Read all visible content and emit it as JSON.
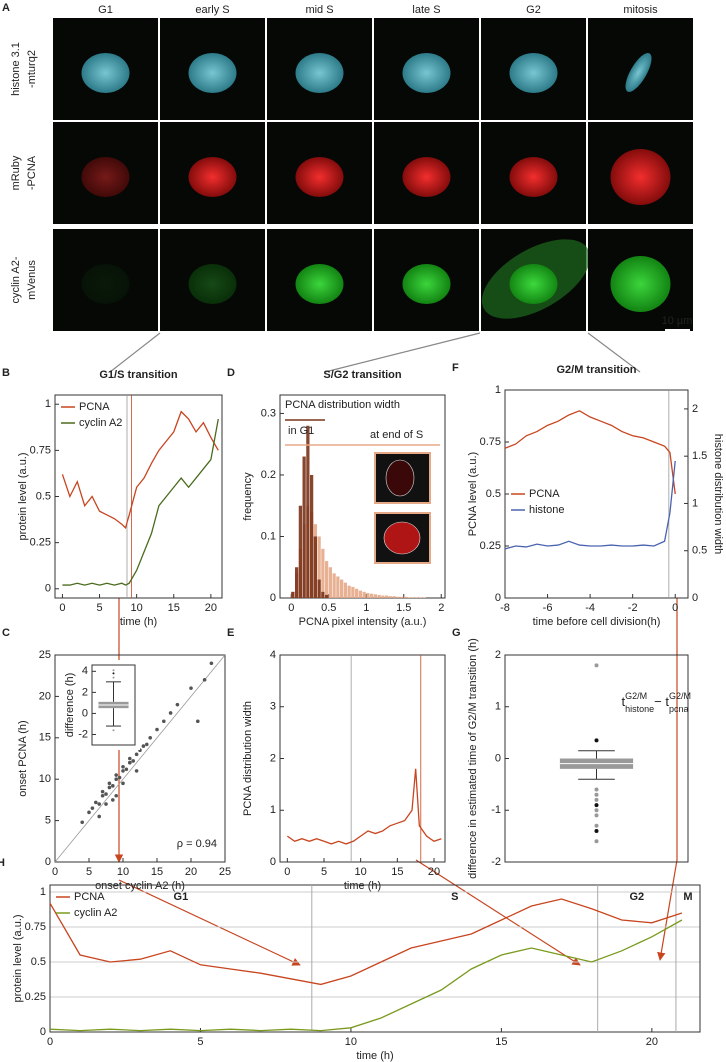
{
  "image_grid": {
    "panel": "A",
    "columns": [
      "G1",
      "early S",
      "mid S",
      "late S",
      "G2",
      "mitosis"
    ],
    "rows": [
      [
        "histone 3.1",
        "-mturq2"
      ],
      [
        "mRuby",
        "-PCNA"
      ],
      [
        "cyclin A2-",
        "mVenus"
      ]
    ],
    "scale_bar": "10 µm"
  },
  "chart_data": [
    {
      "type": "line",
      "panel": "B",
      "title": "G1/S transition",
      "xlabel": "time (h)",
      "ylabel": "protein level (a.u.)",
      "xlim": [
        -1,
        21.5
      ],
      "ylim": [
        -0.05,
        1.05
      ],
      "xticks": [
        0,
        5,
        10,
        15,
        20
      ],
      "yticks": [
        0,
        0.25,
        0.5,
        0.75,
        1
      ],
      "legend": "upper left",
      "markers": [
        8.7,
        9.3
      ],
      "x": [
        0,
        1,
        2,
        3,
        4,
        5,
        6,
        7,
        8,
        8.5,
        9,
        10,
        11,
        12,
        13,
        14,
        15,
        16,
        17,
        18,
        19,
        20,
        21
      ],
      "series": [
        {
          "name": "PCNA",
          "color": "#c8451f",
          "values": [
            0.62,
            0.5,
            0.58,
            0.45,
            0.5,
            0.42,
            0.4,
            0.38,
            0.35,
            0.33,
            0.4,
            0.55,
            0.6,
            0.68,
            0.75,
            0.8,
            0.85,
            0.96,
            0.92,
            0.85,
            0.9,
            0.82,
            0.75
          ]
        },
        {
          "name": "cyclin A2",
          "color": "#4a6b1e",
          "values": [
            0.02,
            0.02,
            0.03,
            0.02,
            0.03,
            0.02,
            0.03,
            0.02,
            0.03,
            0.02,
            0.03,
            0.1,
            0.2,
            0.3,
            0.45,
            0.5,
            0.55,
            0.6,
            0.55,
            0.6,
            0.65,
            0.7,
            0.92
          ]
        }
      ]
    },
    {
      "type": "scatter",
      "panel": "C",
      "xlabel": "onset cyclin A2 (h)",
      "ylabel": "onset PCNA (h)",
      "annotation": "ρ = 0.94",
      "xlim": [
        0,
        25
      ],
      "ylim": [
        0,
        25
      ],
      "xticks": [
        0,
        5,
        10,
        15,
        20,
        25
      ],
      "yticks": [
        0,
        5,
        10,
        15,
        20,
        25
      ],
      "color": "#555",
      "x": [
        4,
        5,
        5.5,
        6,
        6.5,
        7,
        7,
        7.5,
        8,
        8,
        8.5,
        9,
        9,
        9.5,
        10,
        10,
        10.5,
        11,
        11,
        11.5,
        12,
        12.5,
        13,
        13.5,
        14,
        15,
        16,
        17,
        18,
        20,
        21,
        22,
        23,
        6.5,
        8.5,
        10,
        12,
        9,
        7.5,
        11
      ],
      "values": [
        4.8,
        6,
        6.5,
        7.2,
        7,
        8,
        8.5,
        8.2,
        9,
        9.5,
        9.2,
        10,
        10.5,
        10.2,
        11,
        11.5,
        11.2,
        12,
        12.5,
        12.2,
        13,
        13.5,
        14,
        14.2,
        15,
        16,
        17,
        18,
        19,
        21,
        17,
        22,
        24,
        5.5,
        7.5,
        9.5,
        11,
        8,
        7,
        12
      ]
    },
    {
      "type": "box",
      "ylabel": "difference (h)",
      "ylim": [
        -3,
        4.6
      ],
      "yticks": [
        -2,
        0,
        2,
        4
      ],
      "color": "#999",
      "whisker_low": -1.2,
      "q1": 0.5,
      "median": 0.8,
      "q3": 1.1,
      "whisker_high": 3.0,
      "outliers": [
        3.4,
        3.8,
        4.1,
        -1.6
      ]
    },
    {
      "type": "histogram",
      "panel": "D",
      "title": "S/G2 transition",
      "xlabel": "PCNA pixel intensity (a.u.)",
      "ylabel": "frequency",
      "annotations": [
        "PCNA distribution width",
        "in G1",
        "at end of S"
      ],
      "xlim": [
        -0.15,
        2.05
      ],
      "ylim": [
        0,
        0.33
      ],
      "xticks": [
        0,
        0.5,
        1,
        1.5,
        2
      ],
      "yticks": [
        0,
        0.1,
        0.2,
        0.3
      ],
      "bins": [
        0,
        0.05,
        0.1,
        0.15,
        0.2,
        0.25,
        0.3,
        0.35,
        0.4,
        0.45,
        0.5,
        0.55,
        0.6,
        0.65,
        0.7,
        0.75,
        0.8,
        0.85,
        0.9,
        0.95,
        1,
        1.05,
        1.1,
        1.15,
        1.2,
        1.25,
        1.3,
        1.35,
        1.4,
        1.45,
        1.5,
        1.55,
        1.6,
        1.65,
        1.7,
        1.75,
        1.8,
        1.85,
        1.9,
        1.95,
        2
      ],
      "series": [
        {
          "name": "at end of S",
          "color": "#e6a988",
          "values": [
            0.01,
            0.04,
            0.08,
            0.12,
            0.15,
            0.14,
            0.12,
            0.1,
            0.08,
            0.06,
            0.05,
            0.04,
            0.035,
            0.03,
            0.025,
            0.02,
            0.018,
            0.015,
            0.012,
            0.01,
            0.008,
            0.007,
            0.006,
            0.005,
            0.004,
            0.004,
            0.003,
            0.003,
            0.002,
            0.002,
            0.002,
            0.001,
            0.001,
            0.001,
            0.001,
            0.001,
            0,
            0,
            0,
            0
          ]
        },
        {
          "name": "in G1",
          "color": "#7a3318",
          "values": [
            0.01,
            0.05,
            0.15,
            0.23,
            0.28,
            0.2,
            0.1,
            0.03,
            0.01,
            0.005,
            0,
            0,
            0,
            0,
            0,
            0,
            0,
            0,
            0,
            0,
            0,
            0,
            0,
            0,
            0,
            0,
            0,
            0,
            0,
            0,
            0,
            0,
            0,
            0,
            0,
            0,
            0,
            0,
            0,
            0
          ]
        }
      ]
    },
    {
      "type": "line",
      "panel": "E",
      "xlabel": "time (h)",
      "ylabel": "PCNA distribution width",
      "xlim": [
        -1,
        21.5
      ],
      "ylim": [
        0,
        4
      ],
      "xticks": [
        0,
        5,
        10,
        15,
        20
      ],
      "yticks": [
        0,
        1,
        2,
        3,
        4
      ],
      "markers": [
        8.7,
        18.2
      ],
      "x": [
        0,
        1,
        2,
        3,
        4,
        5,
        6,
        7,
        8,
        9,
        10,
        11,
        12,
        13,
        14,
        15,
        16,
        17,
        17.5,
        18,
        19,
        20,
        21
      ],
      "series": [
        {
          "name": "PCNA",
          "color": "#c8451f",
          "values": [
            0.5,
            0.4,
            0.45,
            0.4,
            0.45,
            0.4,
            0.35,
            0.4,
            0.35,
            0.4,
            0.5,
            0.6,
            0.55,
            0.6,
            0.7,
            0.75,
            0.8,
            1.0,
            1.8,
            0.7,
            0.5,
            0.4,
            0.45
          ]
        }
      ]
    },
    {
      "type": "line",
      "panel": "F",
      "title": "G2/M transition",
      "xlabel": "time before cell division(h)",
      "ylabel": "PCNA level (a.u.)",
      "y2label": "histone distribution width",
      "xlim": [
        -8,
        0.6
      ],
      "ylim": [
        0,
        1
      ],
      "y2lim": [
        0,
        2.2
      ],
      "xticks": [
        -8,
        -6,
        -4,
        -2,
        0
      ],
      "yticks": [
        0,
        0.25,
        0.5,
        0.75,
        1
      ],
      "y2ticks": [
        0,
        0.5,
        1,
        1.5,
        2
      ],
      "legend": "center left",
      "markers": [
        -0.3
      ],
      "x": [
        -8,
        -7.5,
        -7,
        -6.5,
        -6,
        -5.5,
        -5,
        -4.5,
        -4,
        -3.5,
        -3,
        -2.5,
        -2,
        -1.5,
        -1,
        -0.5,
        -0.25,
        0
      ],
      "series": [
        {
          "name": "PCNA",
          "color": "#c8451f",
          "values": [
            0.72,
            0.74,
            0.78,
            0.8,
            0.83,
            0.85,
            0.88,
            0.9,
            0.87,
            0.85,
            0.83,
            0.8,
            0.78,
            0.77,
            0.75,
            0.73,
            0.7,
            0.5
          ]
        },
        {
          "name": "histone",
          "color": "#4a63b0",
          "axis": "y2",
          "values": [
            0.52,
            0.55,
            0.54,
            0.57,
            0.55,
            0.56,
            0.6,
            0.56,
            0.55,
            0.55,
            0.56,
            0.55,
            0.55,
            0.56,
            0.55,
            0.6,
            0.9,
            1.45
          ]
        }
      ]
    },
    {
      "type": "box",
      "panel": "G",
      "ylabel": "difference in estimated time of G2/M transition (h)",
      "annotation_parts": [
        "t",
        "G2/M",
        "histone",
        "− t",
        "G2/M",
        "pcna"
      ],
      "ylim": [
        -2,
        2
      ],
      "yticks": [
        -2,
        -1,
        0,
        1,
        2
      ],
      "color": "#999",
      "whisker_low": -0.4,
      "q1": -0.2,
      "median": -0.1,
      "q3": 0,
      "whisker_high": 0.15,
      "outliers": [
        1.8,
        0.35,
        -0.6,
        -0.7,
        -0.8,
        -0.9,
        -1.0,
        -1.1,
        -1.3,
        -1.4,
        -1.6
      ]
    },
    {
      "type": "line",
      "panel": "H",
      "xlabel": "time (h)",
      "ylabel": "protein level (a.u.)",
      "grid": true,
      "legend": "upper left",
      "xlim": [
        0,
        21.6
      ],
      "ylim": [
        0,
        1.05
      ],
      "xticks": [
        0,
        5,
        10,
        15,
        20
      ],
      "yticks": [
        0,
        0.25,
        0.5,
        0.75,
        1
      ],
      "phases": [
        "G1",
        "S",
        "G2",
        "M"
      ],
      "phase_boundaries": [
        8.7,
        18.2,
        20.8
      ],
      "x": [
        0,
        1,
        2,
        3,
        4,
        5,
        6,
        7,
        8,
        9,
        10,
        11,
        12,
        13,
        14,
        15,
        16,
        17,
        18,
        19,
        20,
        21
      ],
      "series": [
        {
          "name": "PCNA",
          "color": "#c8451f",
          "values": [
            0.92,
            0.55,
            0.5,
            0.52,
            0.58,
            0.48,
            0.45,
            0.42,
            0.38,
            0.34,
            0.4,
            0.5,
            0.6,
            0.65,
            0.7,
            0.8,
            0.9,
            0.95,
            0.88,
            0.8,
            0.78,
            0.85
          ]
        },
        {
          "name": "cyclin A2",
          "color": "#7a9a1e",
          "values": [
            0.02,
            0.01,
            0.02,
            0.01,
            0.02,
            0.01,
            0.02,
            0.01,
            0.02,
            0.01,
            0.03,
            0.1,
            0.2,
            0.3,
            0.45,
            0.55,
            0.6,
            0.55,
            0.5,
            0.58,
            0.68,
            0.8
          ]
        }
      ]
    }
  ]
}
